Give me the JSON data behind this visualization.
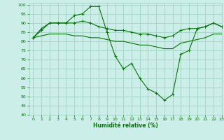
{
  "xlabel": "Humidité relative (%)",
  "xlim": [
    -0.5,
    23
  ],
  "ylim": [
    40,
    101
  ],
  "yticks": [
    40,
    45,
    50,
    55,
    60,
    65,
    70,
    75,
    80,
    85,
    90,
    95,
    100
  ],
  "xticks": [
    0,
    1,
    2,
    3,
    4,
    5,
    6,
    7,
    8,
    9,
    10,
    11,
    12,
    13,
    14,
    15,
    16,
    17,
    18,
    19,
    20,
    21,
    22,
    23
  ],
  "bg_color": "#cceee8",
  "grid_color": "#99ccbb",
  "line_color": "#007700",
  "line1_x": [
    0,
    1,
    2,
    3,
    4,
    5,
    6,
    7,
    8,
    9,
    10,
    11,
    12,
    13,
    14,
    15,
    16,
    17,
    18,
    19,
    20,
    21,
    22,
    23
  ],
  "line1_y": [
    82,
    86,
    90,
    90,
    90,
    94,
    95,
    99,
    99,
    85,
    72,
    65,
    68,
    60,
    54,
    52,
    48,
    51,
    73,
    75,
    87,
    88,
    90,
    88
  ],
  "line2_x": [
    0,
    1,
    2,
    3,
    4,
    5,
    6,
    7,
    8,
    9,
    10,
    11,
    12,
    13,
    14,
    15,
    16,
    17,
    18,
    19,
    20,
    21,
    22,
    23
  ],
  "line2_y": [
    82,
    87,
    90,
    90,
    90,
    90,
    91,
    90,
    88,
    87,
    86,
    86,
    85,
    84,
    84,
    83,
    82,
    83,
    86,
    87,
    87,
    88,
    90,
    88
  ],
  "line3_x": [
    0,
    1,
    2,
    3,
    4,
    5,
    6,
    7,
    8,
    9,
    10,
    11,
    12,
    13,
    14,
    15,
    16,
    17,
    18,
    19,
    20,
    21,
    22,
    23
  ],
  "line3_y": [
    82,
    83,
    84,
    84,
    84,
    83,
    83,
    82,
    82,
    81,
    80,
    80,
    79,
    78,
    78,
    77,
    76,
    76,
    79,
    80,
    81,
    82,
    84,
    84
  ]
}
